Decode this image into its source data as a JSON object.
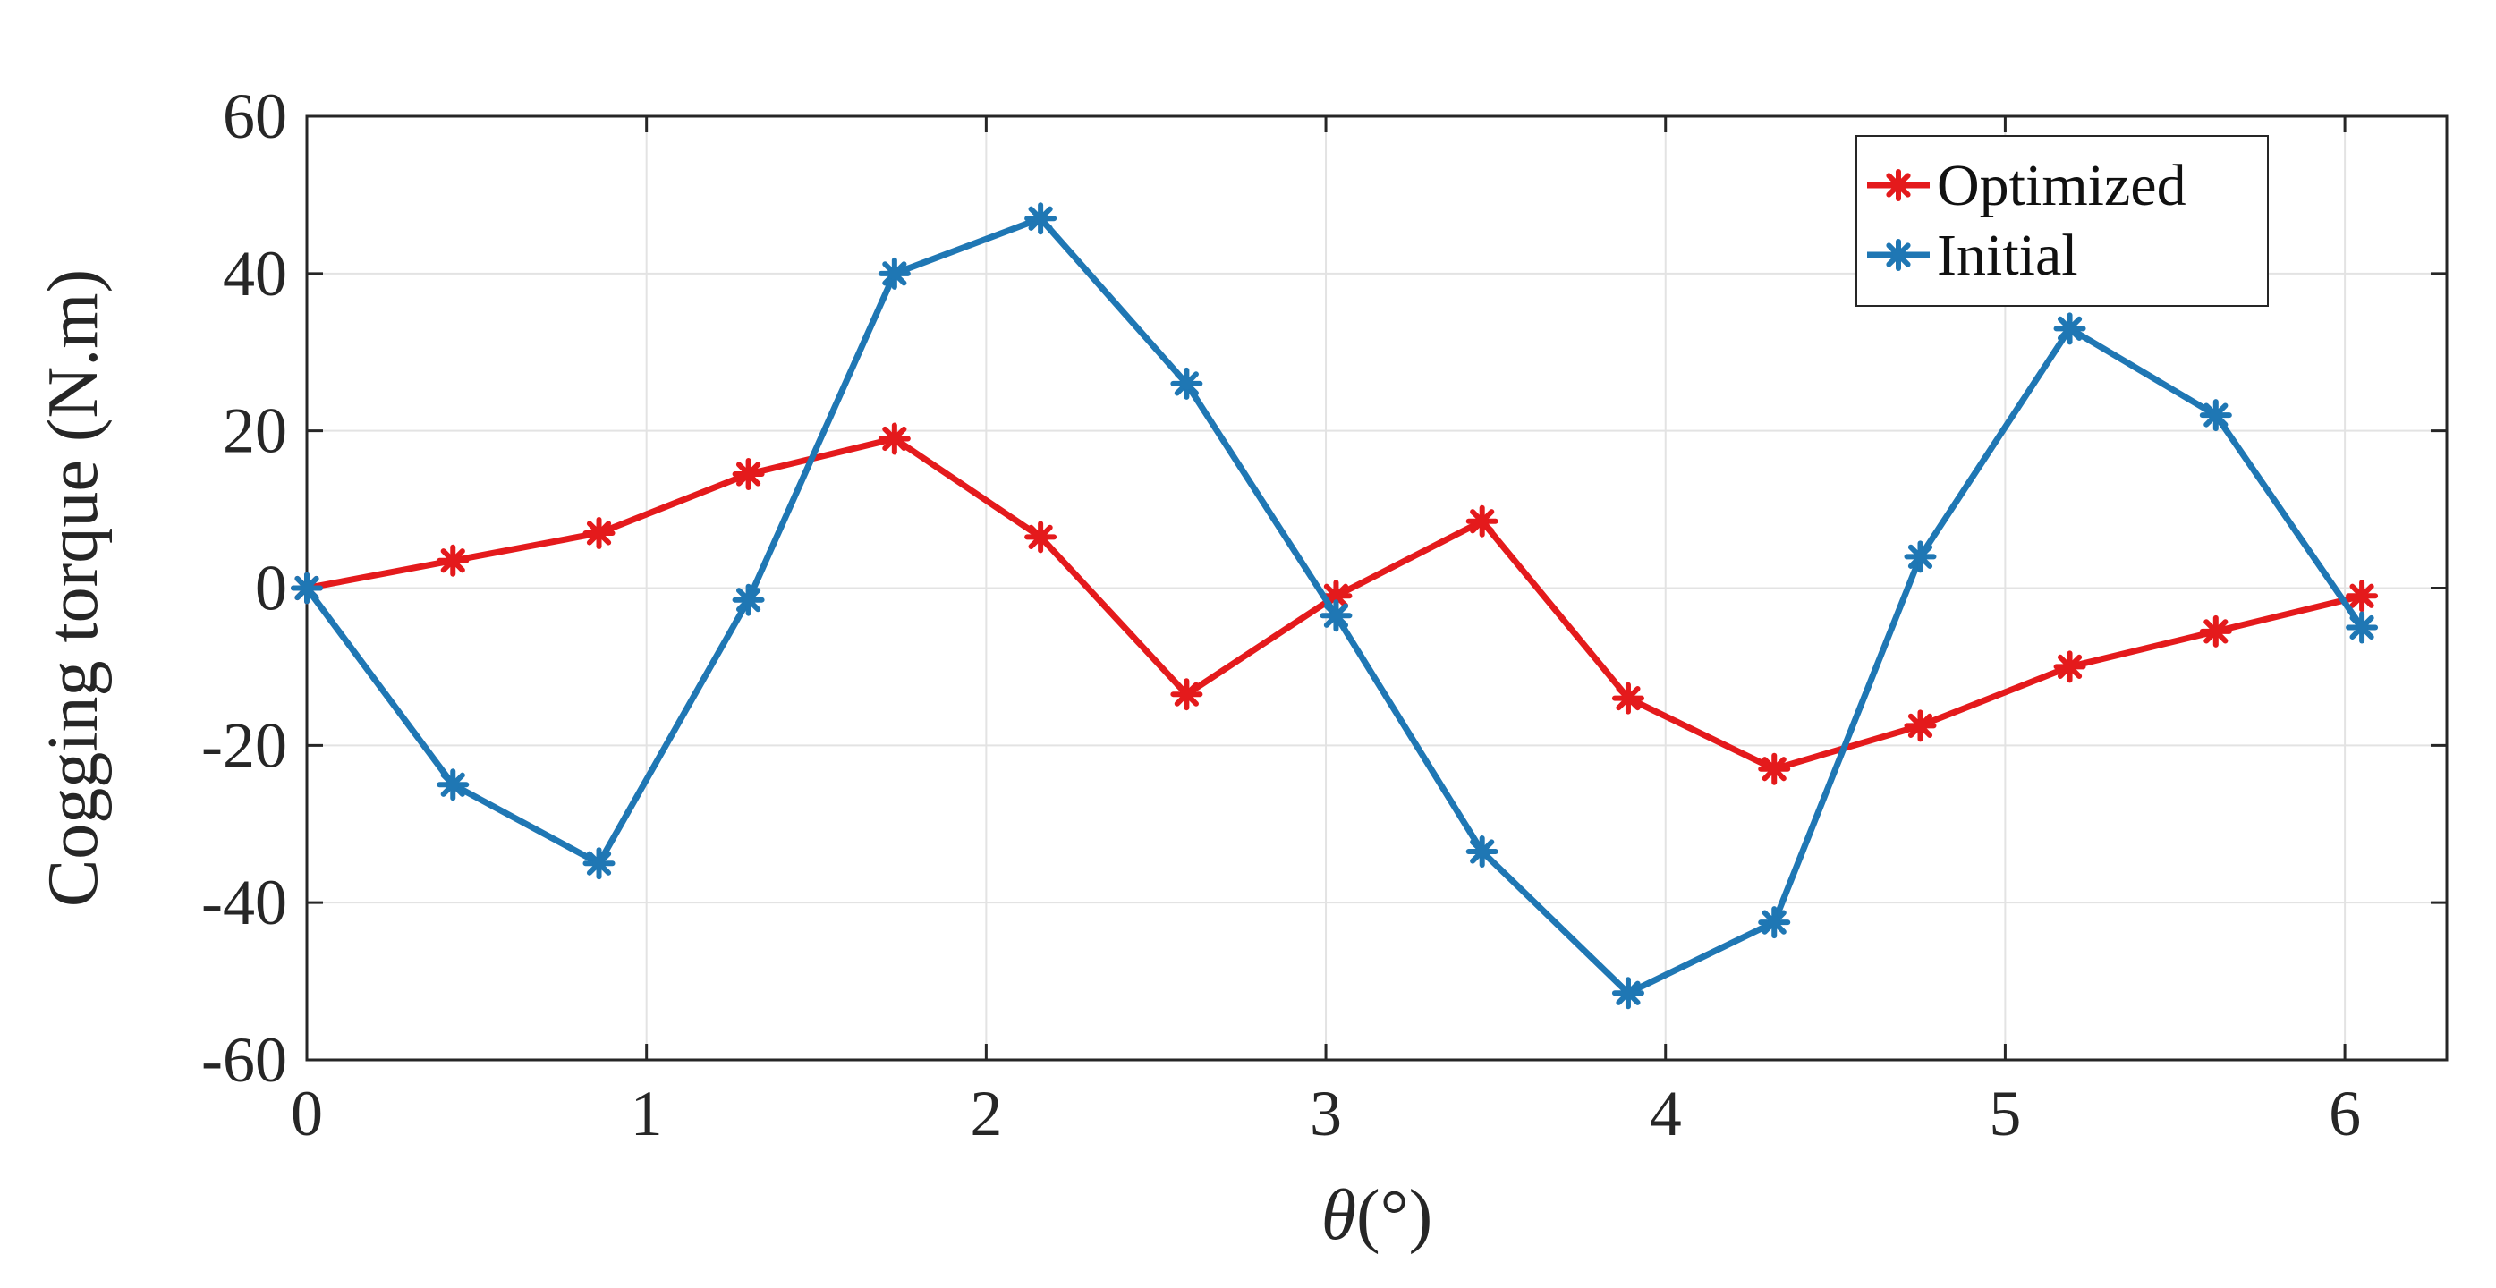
{
  "chart_data": {
    "type": "line",
    "xlabel_symbol": "θ",
    "xlabel_unit": "(°)",
    "ylabel": "Cogging torque  (N.m)",
    "xlim": [
      0,
      6.3
    ],
    "ylim": [
      -60,
      60
    ],
    "xticks": [
      0,
      1,
      2,
      3,
      4,
      5,
      6
    ],
    "yticks": [
      -60,
      -40,
      -20,
      0,
      20,
      40,
      60
    ],
    "grid": true,
    "legend_position": "top-right",
    "x": [
      0,
      0.43,
      0.86,
      1.3,
      1.73,
      2.16,
      2.59,
      3.03,
      3.46,
      3.89,
      4.32,
      4.75,
      5.19,
      5.62,
      6.05
    ],
    "series": [
      {
        "name": "Optimized",
        "color": "#e41a1c",
        "marker": "asterisk",
        "values": [
          0,
          3.5,
          7,
          14.5,
          19,
          6.5,
          -13.5,
          -1,
          8.5,
          -14,
          -23,
          -17.5,
          -10,
          -5.5,
          -1
        ]
      },
      {
        "name": "Initial",
        "color": "#1f77b4",
        "marker": "asterisk",
        "values": [
          0,
          -25,
          -35,
          -1.5,
          40,
          47,
          26,
          -3.5,
          -33.5,
          -51.5,
          -42.5,
          4,
          33,
          22,
          -5
        ]
      }
    ]
  }
}
